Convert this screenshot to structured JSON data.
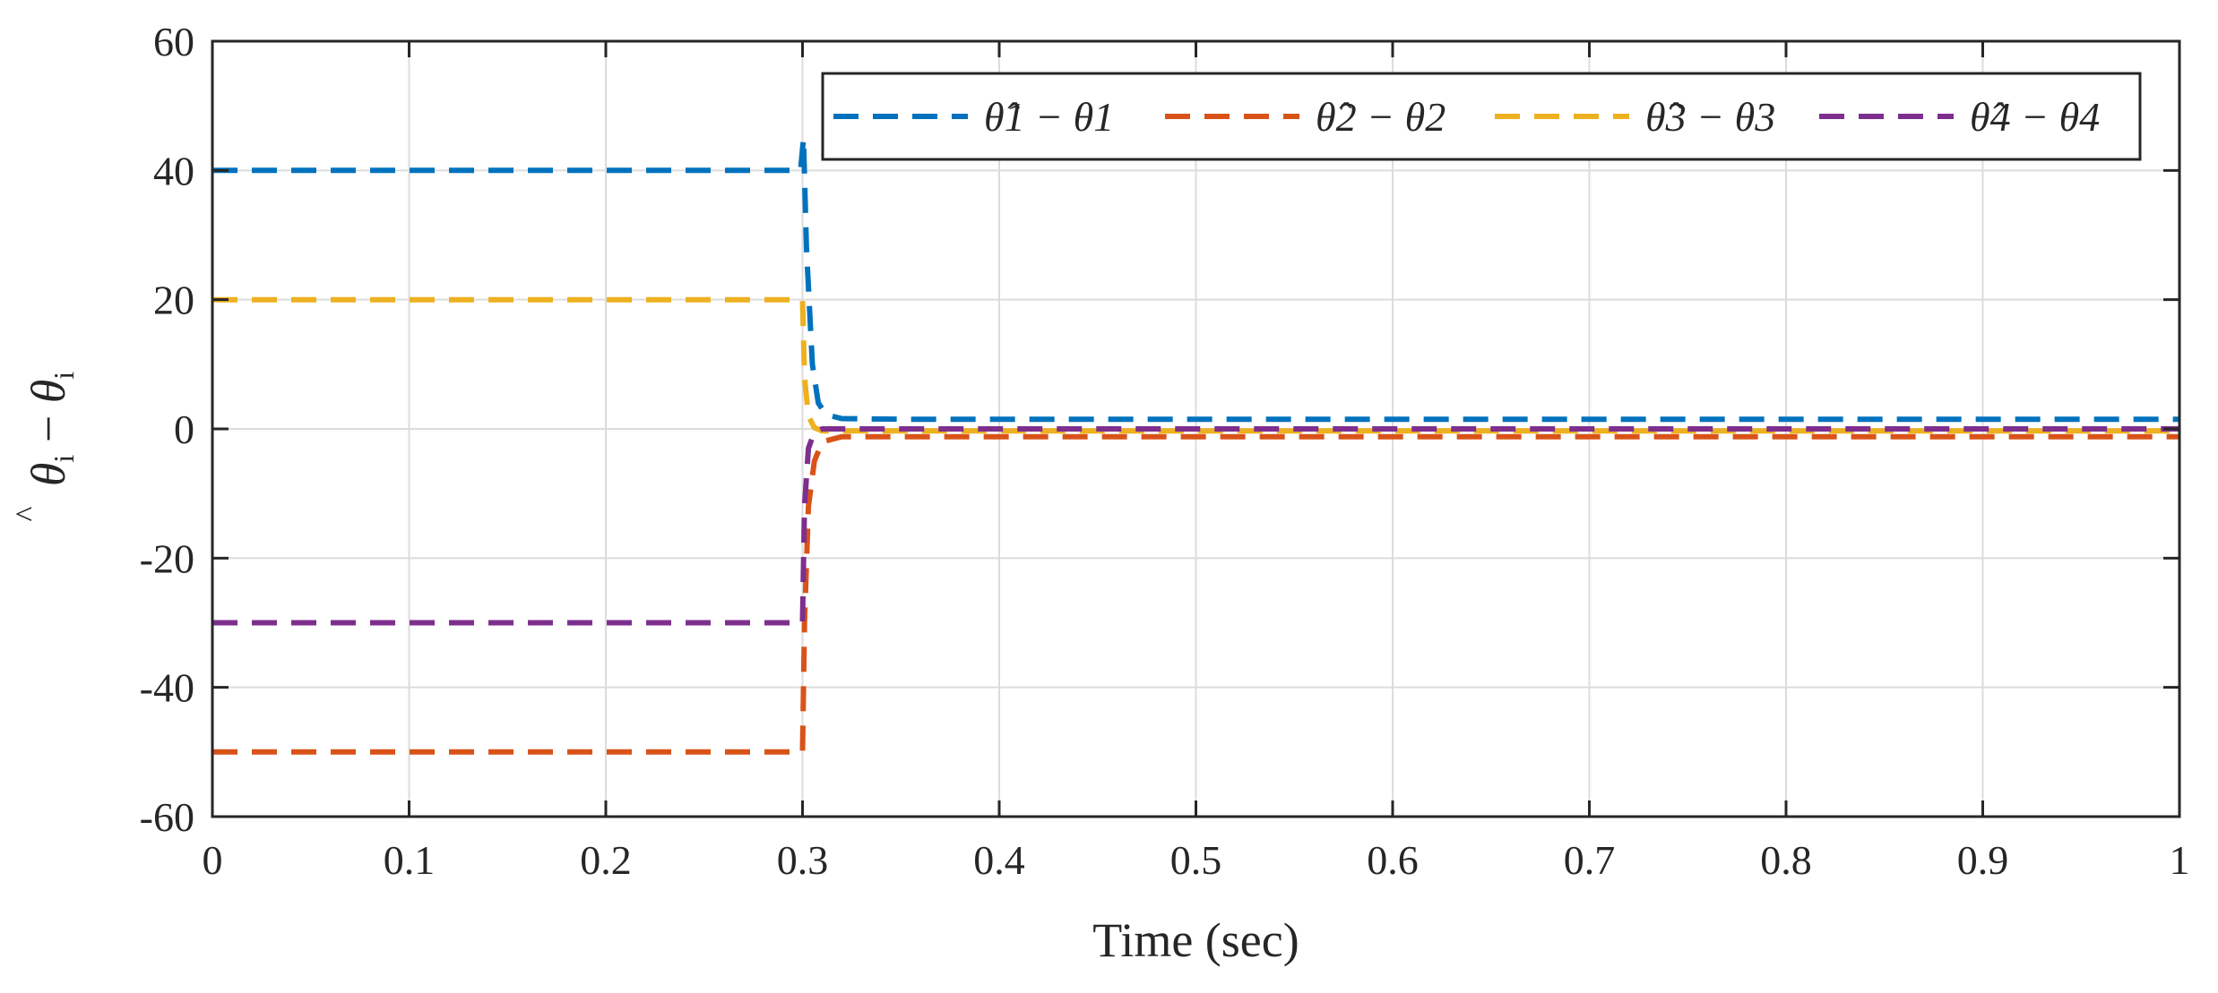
{
  "chart_data": {
    "type": "line",
    "title": "",
    "xlabel": "Time (sec)",
    "ylabel": "θ̂_i − θ_i",
    "ylabel_parts": {
      "theta": "θ",
      "hat": "^",
      "sub": "i",
      "minus": " − "
    },
    "xlim": [
      0,
      1
    ],
    "ylim": [
      -60,
      60
    ],
    "xticks": [
      0,
      0.1,
      0.2,
      0.3,
      0.4,
      0.5,
      0.6,
      0.7,
      0.8,
      0.9,
      1
    ],
    "xtick_labels": [
      "0",
      "0.1",
      "0.2",
      "0.3",
      "0.4",
      "0.5",
      "0.6",
      "0.7",
      "0.8",
      "0.9",
      "1"
    ],
    "yticks": [
      -60,
      -40,
      -20,
      0,
      20,
      40,
      60
    ],
    "ytick_labels": [
      "-60",
      "-40",
      "-20",
      "0",
      "20",
      "40",
      "60"
    ],
    "grid": true,
    "legend_position": "top-right",
    "legend_orientation": "horizontal",
    "line_style": "dashed",
    "series": [
      {
        "name": "θ̂1 − θ1",
        "sub": "1",
        "color": "#0072BD",
        "points": [
          [
            0,
            40
          ],
          [
            0.299,
            40
          ],
          [
            0.3005,
            45
          ],
          [
            0.302,
            28
          ],
          [
            0.305,
            10
          ],
          [
            0.308,
            4
          ],
          [
            0.312,
            2.2
          ],
          [
            0.32,
            1.6
          ],
          [
            0.35,
            1.5
          ],
          [
            1,
            1.5
          ]
        ]
      },
      {
        "name": "θ̂2 − θ2",
        "sub": "2",
        "color": "#D95319",
        "points": [
          [
            0,
            -50
          ],
          [
            0.3,
            -50
          ],
          [
            0.301,
            -30
          ],
          [
            0.303,
            -12
          ],
          [
            0.306,
            -5
          ],
          [
            0.31,
            -2
          ],
          [
            0.32,
            -1.2
          ],
          [
            0.35,
            -1.2
          ],
          [
            1,
            -1.2
          ]
        ]
      },
      {
        "name": "θ̂3 − θ3",
        "sub": "3",
        "color": "#EDB120",
        "points": [
          [
            0,
            20
          ],
          [
            0.3,
            20
          ],
          [
            0.301,
            8
          ],
          [
            0.303,
            2
          ],
          [
            0.306,
            0.2
          ],
          [
            0.31,
            -0.3
          ],
          [
            0.32,
            -0.3
          ],
          [
            1,
            -0.3
          ]
        ]
      },
      {
        "name": "θ̂4 − θ4",
        "sub": "4",
        "color": "#7E2F8E",
        "points": [
          [
            0,
            -30
          ],
          [
            0.3,
            -30
          ],
          [
            0.301,
            -12
          ],
          [
            0.303,
            -3
          ],
          [
            0.306,
            -0.5
          ],
          [
            0.31,
            0
          ],
          [
            1,
            0
          ]
        ]
      }
    ]
  }
}
